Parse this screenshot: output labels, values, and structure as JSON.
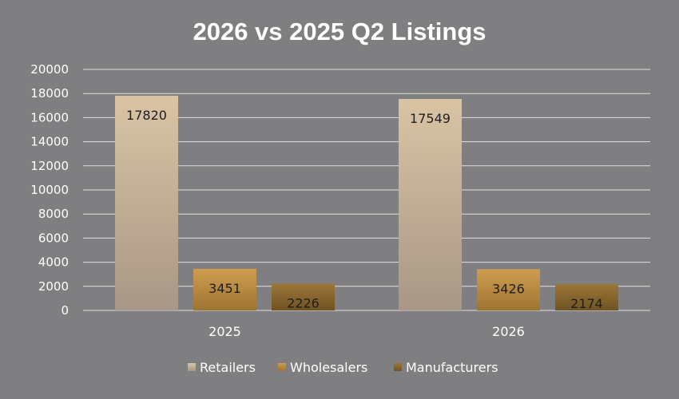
{
  "chart_data": {
    "type": "bar",
    "title": "2026 vs 2025 Q2 Listings",
    "categories": [
      "2025",
      "2026"
    ],
    "series": [
      {
        "name": "Retailers",
        "values": [
          17820,
          17549
        ],
        "color_top": "#d9c4a4",
        "color_bottom": "#a89786"
      },
      {
        "name": "Wholesalers",
        "values": [
          3451,
          3426
        ],
        "color_top": "#cf9d50",
        "color_bottom": "#9e7432"
      },
      {
        "name": "Manufacturers",
        "values": [
          2226,
          2174
        ],
        "color_top": "#9c7638",
        "color_bottom": "#6f5323"
      }
    ],
    "ylim": [
      0,
      20000
    ],
    "yticks": [
      "0",
      "2000",
      "4000",
      "6000",
      "8000",
      "10000",
      "12000",
      "14000",
      "16000",
      "18000",
      "20000"
    ],
    "grid": true,
    "legend_position": "bottom",
    "background": "#7f7e80",
    "gridline_color": "#e8dde2"
  }
}
